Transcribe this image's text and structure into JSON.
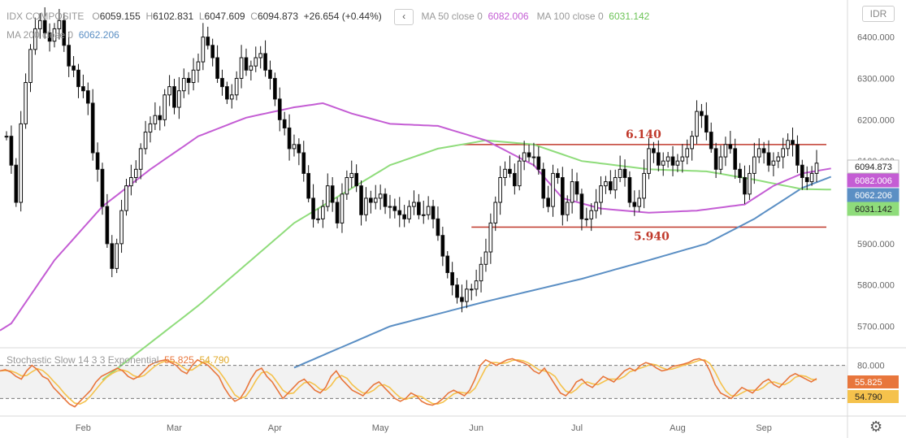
{
  "header": {
    "symbol": "IDX COMPOSITE",
    "o_label": "O",
    "o_value": "6059.155",
    "h_label": "H",
    "h_value": "6102.831",
    "l_label": "L",
    "l_value": "6047.609",
    "c_label": "C",
    "c_value": "6094.873",
    "change": "+26.654 (+0.44%)",
    "nav_icon": "‹",
    "ma50_label": "MA 50 close 0",
    "ma50_value": "6082.006",
    "ma100_label": "MA 100 close 0",
    "ma100_value": "6031.142",
    "ma200_label": "MA 200 close 0",
    "ma200_value": "6062.206"
  },
  "currency_button": "IDR",
  "settings_icon": "gear-icon",
  "oscillator": {
    "label": "Stochastic Slow 14 3 3 Exponential",
    "k_value": "55.825",
    "d_value": "54.790"
  },
  "colors": {
    "up": "#000000",
    "down": "#000000",
    "ma50": "#c45dd4",
    "ma100": "#8fdc7b",
    "ma200": "#5b8fc4",
    "k": "#e8763c",
    "d": "#f5c24c",
    "level": "#c0392b",
    "last_price_bg": "#1a1a1a"
  },
  "chart_data": {
    "type": "candlestick",
    "price_axis": {
      "min": 5650,
      "max": 6470,
      "ticks": [
        6400,
        6300,
        6200,
        6100,
        6000,
        5900,
        5800,
        5700
      ],
      "tick_labels": [
        "6400.000",
        "6300.000",
        "6200.000",
        "6100.000",
        "6000.000",
        "5900.000",
        "5800.000",
        "5700.000"
      ]
    },
    "time_axis": {
      "labels": [
        "Feb",
        "Mar",
        "Apr",
        "May",
        "Jun",
        "Jul",
        "Aug",
        "Sep"
      ]
    },
    "price_tags": [
      {
        "value": 6094.873,
        "text": "6094.873",
        "style": "last"
      },
      {
        "value": 6082.006,
        "text": "6082.006",
        "style": "ma50"
      },
      {
        "value": 6062.206,
        "text": "6062.206",
        "style": "ma200"
      },
      {
        "value": 6031.142,
        "text": "6031.142",
        "style": "ma100"
      }
    ],
    "levels": [
      {
        "value": 6140,
        "label": "6.140"
      },
      {
        "value": 5940,
        "label": "5.940"
      }
    ],
    "candles_start": 6160,
    "closes": [
      6160,
      6090,
      6000,
      6190,
      6290,
      6370,
      6420,
      6440,
      6410,
      6390,
      6420,
      6440,
      6380,
      6330,
      6320,
      6280,
      6270,
      6240,
      6120,
      6080,
      5990,
      5900,
      5840,
      5900,
      5980,
      6040,
      6060,
      6080,
      6130,
      6170,
      6190,
      6210,
      6200,
      6260,
      6280,
      6230,
      6270,
      6300,
      6290,
      6320,
      6340,
      6400,
      6380,
      6350,
      6300,
      6280,
      6250,
      6260,
      6300,
      6350,
      6320,
      6330,
      6350,
      6360,
      6320,
      6300,
      6250,
      6200,
      6180,
      6130,
      6140,
      6120,
      6070,
      6010,
      5960,
      5960,
      5990,
      6040,
      6000,
      5950,
      6020,
      6060,
      6070,
      6040,
      5970,
      6010,
      6000,
      6010,
      6020,
      5990,
      5990,
      5980,
      5970,
      5960,
      5990,
      6000,
      5970,
      5970,
      5990,
      5960,
      5920,
      5870,
      5830,
      5800,
      5770,
      5760,
      5790,
      5790,
      5810,
      5850,
      5880,
      5950,
      6000,
      6060,
      6080,
      6070,
      6040,
      6100,
      6120,
      6110,
      6110,
      6080,
      6010,
      5990,
      6070,
      6060,
      5970,
      6000,
      6050,
      6020,
      5960,
      5960,
      5980,
      6000,
      6040,
      6050,
      6030,
      6060,
      6080,
      6060,
      6000,
      5990,
      6010,
      6070,
      6130,
      6120,
      6090,
      6100,
      6110,
      6090,
      6100,
      6110,
      6130,
      6160,
      6220,
      6210,
      6170,
      6130,
      6080,
      6110,
      6140,
      6130,
      6080,
      6060,
      6020,
      6070,
      6110,
      6130,
      6120,
      6090,
      6100,
      6110,
      6130,
      6150,
      6140,
      6090,
      6060,
      6050,
      6070,
      6094.873
    ],
    "ma50": {
      "start_value": 5690,
      "points": [
        [
          0,
          5690
        ],
        [
          10,
          5860
        ],
        [
          20,
          5990
        ],
        [
          30,
          6080
        ],
        [
          40,
          6160
        ],
        [
          50,
          6205
        ],
        [
          60,
          6230
        ],
        [
          66,
          6240
        ],
        [
          72,
          6215
        ],
        [
          80,
          6190
        ],
        [
          90,
          6185
        ],
        [
          100,
          6150
        ],
        [
          110,
          6090
        ],
        [
          116,
          6010
        ],
        [
          124,
          5985
        ],
        [
          134,
          5975
        ],
        [
          144,
          5980
        ],
        [
          154,
          5995
        ],
        [
          160,
          6040
        ],
        [
          166,
          6070
        ],
        [
          172,
          6082
        ]
      ]
    },
    "ma100": {
      "points": [
        [
          20,
          5570
        ],
        [
          40,
          5750
        ],
        [
          60,
          5950
        ],
        [
          80,
          6090
        ],
        [
          90,
          6130
        ],
        [
          100,
          6150
        ],
        [
          110,
          6140
        ],
        [
          120,
          6100
        ],
        [
          134,
          6080
        ],
        [
          146,
          6075
        ],
        [
          156,
          6055
        ],
        [
          166,
          6032
        ],
        [
          172,
          6031
        ]
      ]
    },
    "ma200": {
      "points": [
        [
          60,
          5600
        ],
        [
          80,
          5700
        ],
        [
          100,
          5760
        ],
        [
          120,
          5815
        ],
        [
          134,
          5860
        ],
        [
          146,
          5900
        ],
        [
          156,
          5960
        ],
        [
          166,
          6035
        ],
        [
          172,
          6062
        ]
      ]
    },
    "stochastic": {
      "y_min": 0,
      "y_max": 100,
      "levels": [
        80,
        20
      ],
      "tick_labels": [
        "80.000"
      ],
      "k": [
        70,
        72,
        68,
        60,
        55,
        70,
        80,
        72,
        60,
        55,
        40,
        30,
        20,
        10,
        5,
        15,
        25,
        35,
        50,
        60,
        65,
        70,
        75,
        70,
        60,
        55,
        60,
        70,
        80,
        85,
        88,
        90,
        85,
        80,
        70,
        65,
        80,
        90,
        85,
        80,
        70,
        60,
        40,
        25,
        15,
        20,
        35,
        55,
        70,
        75,
        60,
        50,
        35,
        20,
        30,
        40,
        50,
        55,
        45,
        35,
        30,
        40,
        60,
        70,
        55,
        45,
        35,
        30,
        25,
        35,
        45,
        50,
        40,
        30,
        20,
        15,
        20,
        30,
        25,
        15,
        10,
        8,
        12,
        20,
        30,
        35,
        30,
        25,
        35,
        55,
        80,
        90,
        85,
        80,
        85,
        90,
        92,
        88,
        85,
        80,
        70,
        65,
        75,
        60,
        45,
        30,
        25,
        35,
        50,
        55,
        45,
        40,
        50,
        60,
        55,
        50,
        60,
        70,
        75,
        70,
        80,
        85,
        82,
        75,
        70,
        72,
        78,
        80,
        82,
        85,
        90,
        92,
        88,
        70,
        45,
        30,
        25,
        20,
        30,
        40,
        35,
        30,
        40,
        50,
        55,
        45,
        40,
        50,
        60,
        65,
        60,
        55,
        50,
        56
      ]
    }
  }
}
